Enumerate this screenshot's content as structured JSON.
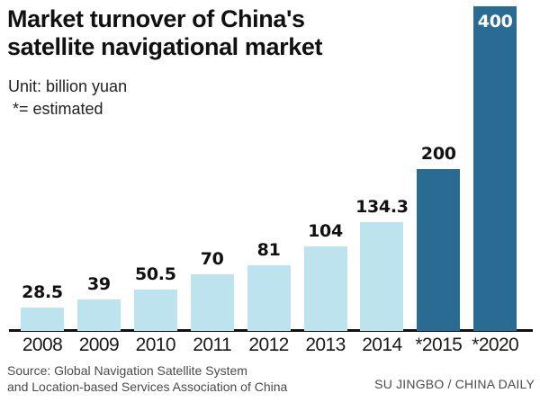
{
  "header": {
    "title_line1": "Market turnover of China's",
    "title_line2": "satellite navigational market",
    "unit_note": "Unit: billion yuan",
    "estimated_note": "*= estimated"
  },
  "chart_data": {
    "type": "bar",
    "title": "Market turnover of China's satellite navigational market",
    "ylabel": "billion yuan",
    "xlabel": "",
    "categories": [
      "2008",
      "2009",
      "2010",
      "2011",
      "2012",
      "2013",
      "2014",
      "*2015",
      "*2020"
    ],
    "values": [
      28.5,
      39,
      50.5,
      70,
      81,
      104,
      134.3,
      200,
      400
    ],
    "value_labels": [
      "28.5",
      "39",
      "50.5",
      "70",
      "81",
      "104",
      "134.3",
      "200",
      "400"
    ],
    "estimated": [
      false,
      false,
      false,
      false,
      false,
      false,
      false,
      true,
      true
    ],
    "label_inside": [
      false,
      false,
      false,
      false,
      false,
      false,
      false,
      false,
      true
    ],
    "ylim": [
      0,
      400
    ],
    "grid": false,
    "legend": "none",
    "colors": {
      "actual": "#bce3ee",
      "estimated": "#2a6b94",
      "value_label": "#111111",
      "value_label_inside": "#ffffff",
      "axis_line": "#111111"
    }
  },
  "footer": {
    "source_line1": "Source: Global Navigation Satellite System",
    "source_line2": "and Location-based Services Association of China",
    "credit": "SU JINGBO / CHINA DAILY"
  }
}
